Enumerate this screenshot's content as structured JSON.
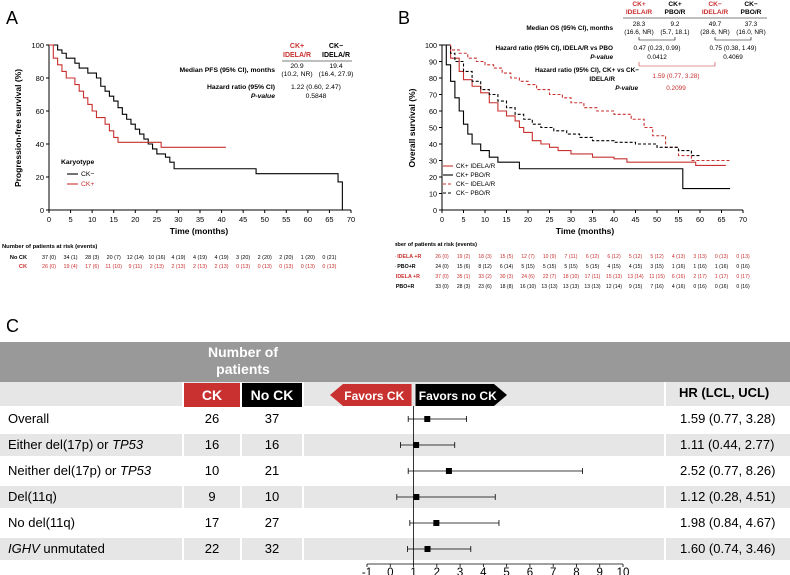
{
  "colors": {
    "ck_red": "#c8312f",
    "black": "#000000",
    "header_gray": "#999999",
    "row_gray": "#e6e6e6",
    "grid_gray": "#bfbfbf"
  },
  "panelA": {
    "letter": "A",
    "ylabel": "Progression-free survival (%)",
    "xlabel": "Time (months)",
    "col_ck": [
      "CK+",
      "IDELA/R"
    ],
    "col_nock": [
      "CK−",
      "IDELA/R"
    ],
    "median_label": "Median PFS (95% CI), months",
    "median_ck": [
      "20.9",
      "(10.2, NR)"
    ],
    "median_nock": [
      "19.4",
      "(16.4, 27.9)"
    ],
    "hr_label": "Hazard ratio   (95% CI)",
    "hr_value": "1.22 (0.60, 2.47)",
    "pvalue_label": "P-value",
    "pvalue": "0.5848",
    "legend_title": "Karyotype",
    "legend": [
      "CK−",
      "CK+"
    ],
    "risk_title": "Number of patients at risk (events)",
    "risk_rows": [
      {
        "label": "No CK",
        "values": [
          "37 (0)",
          "34 (1)",
          "28 (3)",
          "20 (7)",
          "12 (14)",
          "10 (16)",
          "4 (19)",
          "4 (19)",
          "4 (19)",
          "3 (20)",
          "2 (20)",
          "2 (20)",
          "1 (20)",
          "0 (21)"
        ]
      },
      {
        "label": "CK",
        "values": [
          "26 (0)",
          "19 (4)",
          "17 (6)",
          "11 (10)",
          "9 (11)",
          "2 (13)",
          "2 (13)",
          "2 (13)",
          "2 (13)",
          "0 (13)",
          "0 (13)",
          "0 (13)",
          "0 (13)",
          "0 (13)"
        ]
      }
    ]
  },
  "panelB": {
    "letter": "B",
    "ylabel": "Overall survival (%)",
    "xlabel": "Time (months)",
    "cols": [
      [
        "CK+",
        "IDELA/R"
      ],
      [
        "CK+",
        "PBO/R"
      ],
      [
        "CK−",
        "IDELA/R"
      ],
      [
        "CK−",
        "PBO/R"
      ]
    ],
    "median_label": "Median OS (95% CI), months",
    "medians": [
      [
        "28.3",
        "(16.6, NR)"
      ],
      [
        "9.2",
        "(5.7, 18.1)"
      ],
      [
        "49.7",
        "(28.6, NR)"
      ],
      [
        "37.3",
        "(16.0, NR)"
      ]
    ],
    "hr1_label": "Hazard ratio (95% CI), IDELA/R vs PBO",
    "hr1_ck": "0.47 (0.23, 0.99)",
    "hr1_nock": "0.75 (0.38, 1.49)",
    "p1_label": "P-value",
    "p1_ck": "0.0412",
    "p1_nock": "0.4069",
    "hr2_label_lines": [
      "Hazard ratio  (95% CI), CK+ vs CK−",
      "IDELA/R"
    ],
    "hr2_value": "1.59 (0.77, 3.28)",
    "p2_label": "P-value",
    "p2_value": "0.2099",
    "legend": [
      "CK+ IDELA/R",
      "CK+ PBO/R",
      "CK− IDELA/R",
      "CK− PBO/R"
    ],
    "risk_title": "Number of patients at risk (events)",
    "risk_rows": [
      {
        "label": "CK+ IDELA +R",
        "values": [
          "26 (0)",
          "19 (2)",
          "18 (3)",
          "15 (5)",
          "12 (7)",
          "10 (9)",
          "7 (11)",
          "6 (12)",
          "6 (12)",
          "5 (12)",
          "5 (12)",
          "4 (13)",
          "3 (13)",
          "0 (13)",
          "0 (13)"
        ]
      },
      {
        "label": "CK+ PBO+R",
        "values": [
          "24 (0)",
          "15 (6)",
          "8 (12)",
          "6 (14)",
          "5 (15)",
          "5 (15)",
          "5 (15)",
          "5 (15)",
          "4 (15)",
          "4 (15)",
          "3 (15)",
          "1 (16)",
          "1 (16)",
          "1 (16)",
          "0 (16)"
        ]
      },
      {
        "label": "CK- IDELA +R",
        "values": [
          "37 (0)",
          "35 (1)",
          "33 (2)",
          "30 (3)",
          "24 (6)",
          "22 (7)",
          "18 (10)",
          "17 (11)",
          "15 (13)",
          "13 (14)",
          "11 (15)",
          "6 (16)",
          "2 (17)",
          "1 (17)",
          "0 (17)"
        ]
      },
      {
        "label": "CK- PBO+R",
        "values": [
          "33 (0)",
          "28 (3)",
          "23 (6)",
          "18 (8)",
          "16 (10)",
          "13 (13)",
          "13 (13)",
          "13 (13)",
          "12 (14)",
          "9 (15)",
          "7 (16)",
          "4 (16)",
          "0 (16)",
          "0 (16)",
          "0 (16)"
        ]
      }
    ]
  },
  "panelC": {
    "letter": "C",
    "header_number": "Number of",
    "header_patients": "patients",
    "col_ck": "CK",
    "col_nock": "No CK",
    "favors_ck": "Favors CK",
    "favors_nock": "Favors no CK",
    "hr_header": "HR (LCL, UCL)"
  },
  "chart_data": [
    {
      "type": "line",
      "title": "",
      "xlabel": "Time (months)",
      "ylabel": "Progression-free survival (%)",
      "xlim": [
        0,
        70
      ],
      "ylim": [
        0,
        100
      ],
      "x_ticks": [
        0,
        5,
        10,
        15,
        20,
        25,
        30,
        35,
        40,
        45,
        50,
        55,
        60,
        65,
        70
      ],
      "y_ticks": [
        0,
        20,
        40,
        60,
        80,
        100
      ],
      "series": [
        {
          "name": "CK−",
          "color": "#000000",
          "dash": false,
          "points": [
            [
              0,
              100
            ],
            [
              2,
              97
            ],
            [
              3,
              95
            ],
            [
              4,
              92
            ],
            [
              6,
              89
            ],
            [
              7,
              86
            ],
            [
              9,
              83
            ],
            [
              11,
              80
            ],
            [
              12,
              75
            ],
            [
              13,
              72
            ],
            [
              14,
              69
            ],
            [
              15,
              66
            ],
            [
              16,
              62
            ],
            [
              17,
              58
            ],
            [
              18,
              55
            ],
            [
              19,
              52
            ],
            [
              20,
              49
            ],
            [
              21,
              46
            ],
            [
              22,
              43
            ],
            [
              23,
              40
            ],
            [
              24,
              37
            ],
            [
              25,
              34
            ],
            [
              27,
              32
            ],
            [
              28,
              29
            ],
            [
              29,
              25
            ],
            [
              47,
              25
            ],
            [
              48,
              22
            ],
            [
              67,
              17
            ],
            [
              68,
              0
            ]
          ]
        },
        {
          "name": "CK+",
          "color": "#c8312f",
          "dash": false,
          "points": [
            [
              0,
              100
            ],
            [
              1,
              92
            ],
            [
              2,
              88
            ],
            [
              3,
              84
            ],
            [
              4,
              80
            ],
            [
              6,
              76
            ],
            [
              7,
              72
            ],
            [
              8,
              68
            ],
            [
              9,
              64
            ],
            [
              10,
              60
            ],
            [
              11,
              56
            ],
            [
              13,
              52
            ],
            [
              14,
              48
            ],
            [
              15,
              44
            ],
            [
              16,
              41
            ],
            [
              25,
              41
            ],
            [
              26,
              38
            ],
            [
              41,
              38
            ]
          ]
        }
      ]
    },
    {
      "type": "line",
      "title": "",
      "xlabel": "Time (months)",
      "ylabel": "Overall survival (%)",
      "xlim": [
        0,
        70
      ],
      "ylim": [
        0,
        100
      ],
      "x_ticks": [
        0,
        5,
        10,
        15,
        20,
        25,
        30,
        35,
        40,
        45,
        50,
        55,
        60,
        65,
        70
      ],
      "y_ticks": [
        0,
        10,
        20,
        30,
        40,
        50,
        60,
        70,
        80,
        90,
        100
      ],
      "series": [
        {
          "name": "CK+ IDELA/R",
          "color": "#c8312f",
          "dash": false,
          "points": [
            [
              0,
              100
            ],
            [
              2,
              92
            ],
            [
              4,
              84
            ],
            [
              5,
              79
            ],
            [
              7,
              75
            ],
            [
              9,
              71
            ],
            [
              11,
              65
            ],
            [
              13,
              60
            ],
            [
              15,
              57
            ],
            [
              17,
              54
            ],
            [
              18,
              50
            ],
            [
              19,
              47
            ],
            [
              21,
              42
            ],
            [
              23,
              40
            ],
            [
              25,
              38
            ],
            [
              27,
              36
            ],
            [
              30,
              34
            ],
            [
              35,
              32
            ],
            [
              40,
              31
            ],
            [
              43,
              29
            ],
            [
              57,
              29
            ],
            [
              59,
              27
            ],
            [
              66,
              27
            ]
          ]
        },
        {
          "name": "CK+ PBO/R",
          "color": "#000000",
          "dash": false,
          "points": [
            [
              0,
              100
            ],
            [
              1,
              88
            ],
            [
              2,
              78
            ],
            [
              3,
              68
            ],
            [
              4,
              60
            ],
            [
              5,
              52
            ],
            [
              6,
              46
            ],
            [
              7,
              40
            ],
            [
              9,
              36
            ],
            [
              11,
              32
            ],
            [
              13,
              29
            ],
            [
              18,
              25
            ],
            [
              55,
              25
            ],
            [
              56,
              13
            ],
            [
              67,
              13
            ]
          ]
        },
        {
          "name": "CK− IDELA/R",
          "color": "#c8312f",
          "dash": true,
          "points": [
            [
              0,
              100
            ],
            [
              2,
              97
            ],
            [
              4,
              95
            ],
            [
              6,
              92
            ],
            [
              8,
              90
            ],
            [
              10,
              88
            ],
            [
              12,
              86
            ],
            [
              14,
              83
            ],
            [
              16,
              80
            ],
            [
              18,
              78
            ],
            [
              20,
              76
            ],
            [
              22,
              73
            ],
            [
              25,
              70
            ],
            [
              28,
              68
            ],
            [
              30,
              65
            ],
            [
              33,
              62
            ],
            [
              36,
              60
            ],
            [
              40,
              58
            ],
            [
              44,
              55
            ],
            [
              47,
              50
            ],
            [
              49,
              45
            ],
            [
              52,
              38
            ],
            [
              55,
              33
            ],
            [
              58,
              30
            ],
            [
              67,
              30
            ]
          ]
        },
        {
          "name": "CK− PBO/R",
          "color": "#000000",
          "dash": true,
          "points": [
            [
              0,
              100
            ],
            [
              2,
              95
            ],
            [
              3,
              90
            ],
            [
              5,
              84
            ],
            [
              7,
              78
            ],
            [
              9,
              73
            ],
            [
              11,
              70
            ],
            [
              13,
              66
            ],
            [
              15,
              62
            ],
            [
              17,
              58
            ],
            [
              19,
              55
            ],
            [
              21,
              52
            ],
            [
              23,
              50
            ],
            [
              26,
              48
            ],
            [
              29,
              46
            ],
            [
              32,
              44
            ],
            [
              35,
              42
            ],
            [
              40,
              41
            ],
            [
              45,
              40
            ],
            [
              50,
              38
            ],
            [
              55,
              36
            ],
            [
              58,
              33
            ],
            [
              60,
              33
            ]
          ]
        }
      ]
    },
    {
      "type": "forest",
      "title": "",
      "xlabel": "",
      "x_ticks": [
        -1,
        0,
        1,
        2,
        3,
        4,
        5,
        6,
        7,
        8,
        9,
        10
      ],
      "xlim": [
        -1,
        10
      ],
      "rows": [
        {
          "label": "Overall",
          "label_parts": [
            {
              "t": "Overall",
              "i": false
            }
          ],
          "ck": "26",
          "nock": "37",
          "hr": 1.59,
          "lcl": 0.77,
          "ucl": 3.28,
          "hr_text": "1.59 (0.77, 3.28)"
        },
        {
          "label": "Either del(17p) or TP53",
          "label_parts": [
            {
              "t": "Either del(17p) or ",
              "i": false
            },
            {
              "t": "TP53",
              "i": true
            }
          ],
          "ck": "16",
          "nock": "16",
          "hr": 1.11,
          "lcl": 0.44,
          "ucl": 2.77,
          "hr_text": "1.11 (0.44, 2.77)"
        },
        {
          "label": "Neither del(17p) or TP53",
          "label_parts": [
            {
              "t": "Neither del(17p) or ",
              "i": false
            },
            {
              "t": "TP53",
              "i": true
            }
          ],
          "ck": "10",
          "nock": "21",
          "hr": 2.52,
          "lcl": 0.77,
          "ucl": 8.26,
          "hr_text": "2.52 (0.77, 8.26)"
        },
        {
          "label": "Del(11q)",
          "label_parts": [
            {
              "t": "Del(11q)",
              "i": false
            }
          ],
          "ck": "9",
          "nock": "10",
          "hr": 1.12,
          "lcl": 0.28,
          "ucl": 4.51,
          "hr_text": "1.12 (0.28, 4.51)"
        },
        {
          "label": "No del(11q)",
          "label_parts": [
            {
              "t": "No del(11q)",
              "i": false
            }
          ],
          "ck": "17",
          "nock": "27",
          "hr": 1.98,
          "lcl": 0.84,
          "ucl": 4.67,
          "hr_text": "1.98 (0.84, 4.67)"
        },
        {
          "label": "IGHV unmutated",
          "label_parts": [
            {
              "t": "IGHV",
              "i": true
            },
            {
              "t": " unmutated",
              "i": false
            }
          ],
          "ck": "22",
          "nock": "32",
          "hr": 1.6,
          "lcl": 0.74,
          "ucl": 3.46,
          "hr_text": "1.60 (0.74, 3.46)"
        }
      ]
    }
  ]
}
